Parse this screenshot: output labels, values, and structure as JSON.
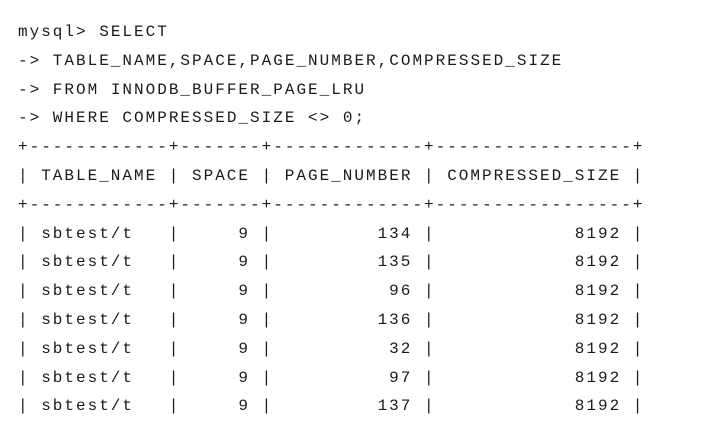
{
  "query": [
    "mysql> SELECT",
    "-> TABLE_NAME,SPACE,PAGE_NUMBER,COMPRESSED_SIZE",
    "-> FROM INNODB_BUFFER_PAGE_LRU",
    "-> WHERE COMPRESSED_SIZE <> 0;"
  ],
  "table": {
    "columns": [
      "TABLE_NAME",
      "SPACE",
      "PAGE_NUMBER",
      "COMPRESSED_SIZE"
    ],
    "rows": [
      [
        "sbtest/t",
        9,
        134,
        8192
      ],
      [
        "sbtest/t",
        9,
        135,
        8192
      ],
      [
        "sbtest/t",
        9,
        96,
        8192
      ],
      [
        "sbtest/t",
        9,
        136,
        8192
      ],
      [
        "sbtest/t",
        9,
        32,
        8192
      ],
      [
        "sbtest/t",
        9,
        97,
        8192
      ],
      [
        "sbtest/t",
        9,
        137,
        8192
      ]
    ]
  }
}
